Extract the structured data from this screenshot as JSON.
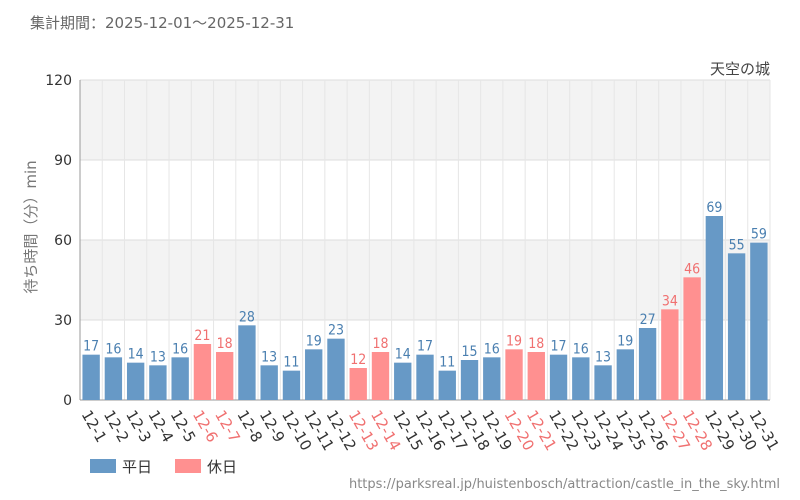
{
  "header": {
    "period_label": "集計期間：2025-12-01～2025-12-31",
    "source_url": "https://parksreal.jp/huistenbosch/attraction/castle_in_the_sky.html"
  },
  "colors": {
    "weekday": "#6799c6",
    "holiday": "#ff9090",
    "weekday_text": "#4a7fb0",
    "holiday_text": "#f07070",
    "band": "#f3f3f3",
    "grid": "#dddddd"
  },
  "chart_data": {
    "type": "bar",
    "title": "天空の城",
    "xlabel": "",
    "ylabel": "待ち時間（分）min",
    "ylim": [
      0,
      120
    ],
    "yticks": [
      0,
      30,
      60,
      90,
      120
    ],
    "categories": [
      "12-1",
      "12-2",
      "12-3",
      "12-4",
      "12-5",
      "12-6",
      "12-7",
      "12-8",
      "12-9",
      "12-10",
      "12-11",
      "12-12",
      "12-13",
      "12-14",
      "12-15",
      "12-16",
      "12-17",
      "12-18",
      "12-19",
      "12-20",
      "12-21",
      "12-22",
      "12-23",
      "12-24",
      "12-25",
      "12-26",
      "12-27",
      "12-28",
      "12-29",
      "12-30",
      "12-31"
    ],
    "values": [
      17,
      16,
      14,
      13,
      16,
      21,
      18,
      28,
      13,
      11,
      19,
      23,
      12,
      18,
      14,
      17,
      11,
      15,
      16,
      19,
      18,
      17,
      16,
      13,
      19,
      27,
      34,
      46,
      69,
      55,
      59
    ],
    "day_type": [
      "weekday",
      "weekday",
      "weekday",
      "weekday",
      "weekday",
      "holiday",
      "holiday",
      "weekday",
      "weekday",
      "weekday",
      "weekday",
      "weekday",
      "holiday",
      "holiday",
      "weekday",
      "weekday",
      "weekday",
      "weekday",
      "weekday",
      "holiday",
      "holiday",
      "weekday",
      "weekday",
      "weekday",
      "weekday",
      "weekday",
      "holiday",
      "holiday",
      "weekday",
      "weekday",
      "weekday"
    ],
    "legend": [
      {
        "key": "weekday",
        "label": "平日"
      },
      {
        "key": "holiday",
        "label": "休日"
      }
    ],
    "legend_position": "bottom-left"
  }
}
